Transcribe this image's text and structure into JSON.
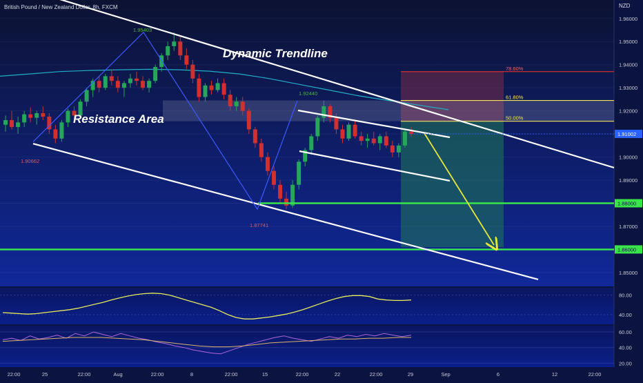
{
  "header": {
    "symbol": "British Pound / New Zealand Dollar, 8h, FXCM",
    "currency": "NZD"
  },
  "annotations": {
    "dynamic_trendline": "Dynamic Trendline",
    "resistance_area": "Resistance Area"
  },
  "colors": {
    "background_top": "#0c1232",
    "background_bottom": "#10289a",
    "bull": "#26a65b",
    "bear": "#d0302f",
    "trendline": "#ffffff",
    "zigzag": "#3d5afe",
    "ma": "#21b0c8",
    "level": "#39e34a",
    "target_arrow": "#e8e83a",
    "fib": "#f5e35a",
    "stop_zone": "#8e3048",
    "target_zone": "#1f7a58",
    "price_tag": "#2962ff"
  },
  "chart_data": [
    {
      "type": "candlestick",
      "title": "British Pound / New Zealand Dollar, 8h, FXCM",
      "ylim": [
        1.844,
        1.968
      ],
      "y_ticks": [
        1.85,
        1.86,
        1.87,
        1.88,
        1.89,
        1.9,
        1.91,
        1.92,
        1.93,
        1.94,
        1.95,
        1.96
      ],
      "y_tick_labels": [
        "1.85000",
        "1.86000",
        "1.87000",
        "1.88000",
        "1.89000",
        "1.90000",
        "1.91000",
        "1.92000",
        "1.93000",
        "1.94000",
        "1.95000",
        "1.96000"
      ],
      "x_tick_labels": [
        "22:00",
        "25",
        "22:00",
        "Aug",
        "22:00",
        "8",
        "22:00",
        "15",
        "22:00",
        "22",
        "22:00",
        "29",
        "Sep",
        "6",
        "12",
        "22:00"
      ],
      "last_price": "1.91002",
      "level_labels": [
        "1.88000",
        "1.86000"
      ],
      "levels": [
        1.88,
        1.86
      ],
      "pivot_labels": [
        "1.90662",
        "1.95403",
        "1.87741",
        "1.92440"
      ],
      "pivots": [
        1.90662,
        1.95403,
        1.87741,
        1.9244
      ],
      "fib_labels": [
        "78.60%",
        "61.80%",
        "50.00%"
      ],
      "fib_levels": [
        1.937,
        1.9245,
        1.9155
      ],
      "resistance_zone": [
        1.9155,
        1.9245
      ],
      "target": 1.861,
      "candles_ohlc": [
        [
          1.914,
          1.918,
          1.911,
          1.916
        ],
        [
          1.916,
          1.92,
          1.912,
          1.913
        ],
        [
          1.913,
          1.9175,
          1.91,
          1.915
        ],
        [
          1.915,
          1.92,
          1.913,
          1.9185
        ],
        [
          1.9185,
          1.9215,
          1.915,
          1.917
        ],
        [
          1.917,
          1.92,
          1.914,
          1.919
        ],
        [
          1.919,
          1.922,
          1.916,
          1.9175
        ],
        [
          1.9175,
          1.919,
          1.91,
          1.912
        ],
        [
          1.912,
          1.914,
          1.906,
          1.908
        ],
        [
          1.908,
          1.916,
          1.9066,
          1.915
        ],
        [
          1.915,
          1.921,
          1.913,
          1.92
        ],
        [
          1.92,
          1.922,
          1.916,
          1.918
        ],
        [
          1.918,
          1.925,
          1.917,
          1.924
        ],
        [
          1.924,
          1.93,
          1.922,
          1.929
        ],
        [
          1.929,
          1.934,
          1.926,
          1.933
        ],
        [
          1.933,
          1.935,
          1.928,
          1.93
        ],
        [
          1.93,
          1.936,
          1.929,
          1.935
        ],
        [
          1.935,
          1.938,
          1.931,
          1.933
        ],
        [
          1.933,
          1.935,
          1.928,
          1.93
        ],
        [
          1.93,
          1.933,
          1.926,
          1.932
        ],
        [
          1.932,
          1.936,
          1.93,
          1.934
        ],
        [
          1.934,
          1.937,
          1.931,
          1.933
        ],
        [
          1.933,
          1.935,
          1.929,
          1.93
        ],
        [
          1.93,
          1.934,
          1.928,
          1.933
        ],
        [
          1.933,
          1.94,
          1.932,
          1.939
        ],
        [
          1.939,
          1.945,
          1.937,
          1.944
        ],
        [
          1.944,
          1.95,
          1.942,
          1.948
        ],
        [
          1.948,
          1.954,
          1.946,
          1.95
        ],
        [
          1.95,
          1.952,
          1.942,
          1.944
        ],
        [
          1.944,
          1.947,
          1.938,
          1.94
        ],
        [
          1.94,
          1.942,
          1.932,
          1.934
        ],
        [
          1.934,
          1.936,
          1.924,
          1.926
        ],
        [
          1.926,
          1.932,
          1.924,
          1.931
        ],
        [
          1.931,
          1.933,
          1.927,
          1.929
        ],
        [
          1.929,
          1.934,
          1.928,
          1.932
        ],
        [
          1.932,
          1.934,
          1.925,
          1.927
        ],
        [
          1.927,
          1.929,
          1.92,
          1.922
        ],
        [
          1.922,
          1.926,
          1.92,
          1.924
        ],
        [
          1.924,
          1.926,
          1.918,
          1.92
        ],
        [
          1.92,
          1.921,
          1.91,
          1.912
        ],
        [
          1.912,
          1.913,
          1.904,
          1.906
        ],
        [
          1.906,
          1.908,
          1.898,
          1.9
        ],
        [
          1.9,
          1.902,
          1.892,
          1.894
        ],
        [
          1.894,
          1.896,
          1.886,
          1.888
        ],
        [
          1.888,
          1.89,
          1.88,
          1.882
        ],
        [
          1.882,
          1.885,
          1.8774,
          1.879
        ],
        [
          1.879,
          1.89,
          1.878,
          1.888
        ],
        [
          1.888,
          1.899,
          1.886,
          1.898
        ],
        [
          1.898,
          1.904,
          1.896,
          1.903
        ],
        [
          1.903,
          1.91,
          1.901,
          1.909
        ],
        [
          1.909,
          1.918,
          1.907,
          1.917
        ],
        [
          1.917,
          1.9244,
          1.915,
          1.922
        ],
        [
          1.922,
          1.923,
          1.915,
          1.917
        ],
        [
          1.917,
          1.919,
          1.91,
          1.912
        ],
        [
          1.912,
          1.914,
          1.906,
          1.908
        ],
        [
          1.908,
          1.915,
          1.907,
          1.914
        ],
        [
          1.914,
          1.916,
          1.908,
          1.909
        ],
        [
          1.909,
          1.911,
          1.905,
          1.907
        ],
        [
          1.907,
          1.91,
          1.904,
          1.908
        ],
        [
          1.908,
          1.911,
          1.905,
          1.906
        ],
        [
          1.906,
          1.91,
          1.903,
          1.909
        ],
        [
          1.909,
          1.911,
          1.904,
          1.905
        ],
        [
          1.905,
          1.907,
          1.9,
          1.902
        ],
        [
          1.902,
          1.906,
          1.9,
          1.905
        ],
        [
          1.905,
          1.912,
          1.904,
          1.911
        ],
        [
          1.911,
          1.913,
          1.909,
          1.91
        ]
      ],
      "moving_average": [
        1.935,
        1.936,
        1.937,
        1.9375,
        1.9378,
        1.938,
        1.9378,
        1.9372,
        1.936,
        1.934,
        1.9315,
        1.929,
        1.9265,
        1.9245,
        1.9225,
        1.9205
      ],
      "upper_trendline": [
        [
          0,
          1.97
        ],
        [
          878,
          1.896
        ]
      ],
      "lower_trendline": [
        [
          0,
          1.907
        ],
        [
          780,
          1.847
        ]
      ],
      "zigzag": [
        1.90662,
        1.95403,
        1.87741,
        1.9244
      ]
    },
    {
      "type": "line",
      "panel": "oscillator-1",
      "y_ticks": [
        40,
        80
      ],
      "y_tick_labels": [
        "40.00",
        "80.00"
      ],
      "ylim": [
        20,
        95
      ],
      "values": [
        44,
        43,
        42,
        41,
        42,
        44,
        46,
        48,
        50,
        53,
        57,
        61,
        65,
        70,
        74,
        78,
        81,
        83,
        84,
        83,
        80,
        75,
        70,
        65,
        60,
        55,
        48,
        40,
        34,
        31,
        31,
        33,
        35,
        38,
        41,
        45,
        50,
        56,
        62,
        68,
        73,
        77,
        79,
        79,
        77,
        72,
        70,
        69,
        69,
        70
      ]
    },
    {
      "type": "line",
      "panel": "oscillator-2",
      "y_ticks": [
        20,
        40,
        60
      ],
      "y_tick_labels": [
        "20.00",
        "40.00",
        "60.00"
      ],
      "ylim": [
        15,
        68
      ],
      "values": [
        50,
        52,
        49,
        55,
        51,
        53,
        56,
        52,
        58,
        55,
        60,
        57,
        54,
        58,
        55,
        52,
        50,
        47,
        45,
        42,
        40,
        37,
        35,
        33,
        32,
        36,
        40,
        44,
        47,
        50,
        53,
        55,
        52,
        50,
        48,
        51,
        54,
        52,
        56,
        54,
        57,
        55,
        58,
        56,
        54,
        56
      ],
      "signal": [
        48,
        49,
        50,
        51,
        52,
        53,
        53,
        53,
        52,
        51,
        50,
        48,
        46,
        44,
        42,
        41,
        41,
        42,
        44,
        46,
        47,
        48,
        49,
        50,
        51,
        51,
        52,
        52,
        53,
        53
      ]
    }
  ]
}
